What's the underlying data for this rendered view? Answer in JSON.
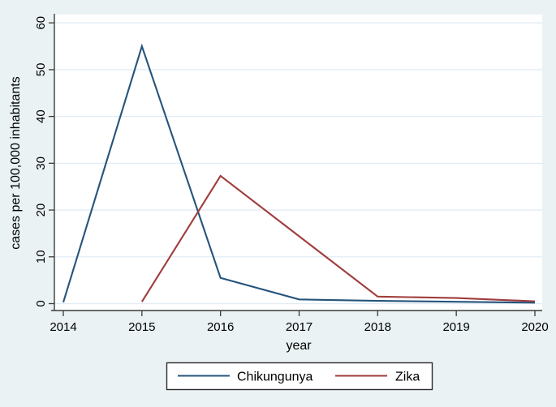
{
  "chart_data": {
    "type": "line",
    "title": "",
    "xlabel": "year",
    "ylabel": "cases per 100,000 inhabitants",
    "xlim": [
      2014,
      2020
    ],
    "ylim": [
      0,
      60
    ],
    "xticks": [
      2014,
      2015,
      2016,
      2017,
      2018,
      2019,
      2020
    ],
    "yticks": [
      0,
      10,
      20,
      30,
      40,
      50,
      60
    ],
    "grid": "horizontal-only",
    "legend_position": "bottom-center",
    "series": [
      {
        "name": "Chikungunya",
        "color": "#26547c",
        "x": [
          2014,
          2015,
          2016,
          2017,
          2018,
          2019,
          2020
        ],
        "values": [
          0.3,
          55,
          5.5,
          0.9,
          0.6,
          0.4,
          0.2
        ]
      },
      {
        "name": "Zika",
        "color": "#a03c3c",
        "x": [
          2015,
          2016,
          2017,
          2018,
          2019,
          2020
        ],
        "values": [
          0.4,
          27.3,
          14.4,
          1.5,
          1.2,
          0.5
        ]
      }
    ],
    "colors": {
      "background": "#eaf2f3",
      "plot_background": "#ffffff",
      "gridline": "#e2ecf4",
      "axis": "#3b3b3b",
      "text": "#000000",
      "legend_background": "#ffffff",
      "legend_border": "#2b2b2b"
    }
  }
}
